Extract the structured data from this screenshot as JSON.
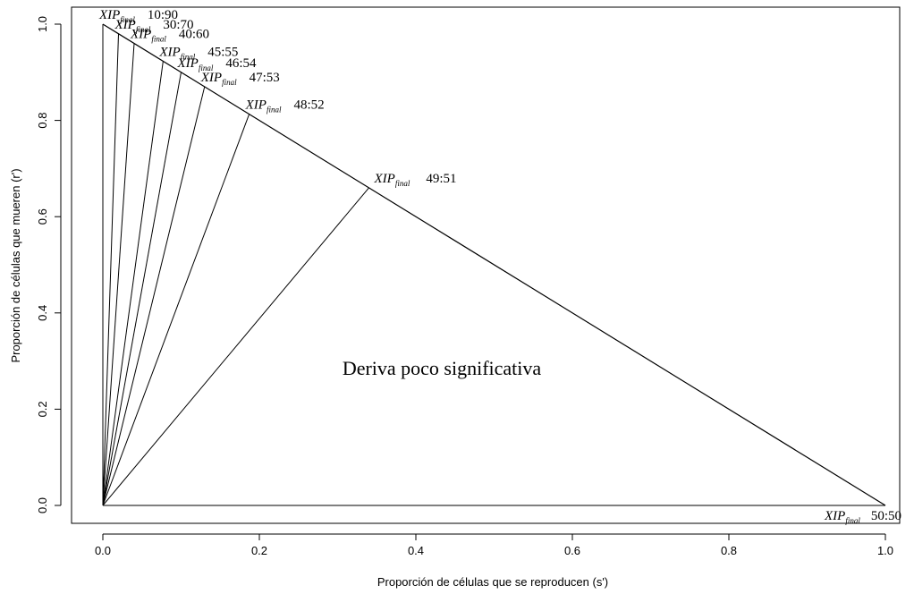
{
  "chart_data": {
    "type": "line",
    "xlabel": "Proporción de células que se reproducen (s')",
    "ylabel": "Proporción de células que mueren (r')",
    "xlim": [
      0,
      1
    ],
    "ylim": [
      0,
      1
    ],
    "xticks": [
      "0.0",
      "0.2",
      "0.4",
      "0.6",
      "0.8",
      "1.0"
    ],
    "yticks": [
      "0.0",
      "0.2",
      "0.4",
      "0.6",
      "0.8",
      "1.0"
    ],
    "grid": false,
    "boundary": [
      {
        "x": 0,
        "y": 1
      },
      {
        "x": 1,
        "y": 0
      }
    ],
    "rays_from_origin": [
      {
        "x": 0.0,
        "y": 1.0,
        "label_main": "XIP",
        "label_sub": "final",
        "ratio": "10:90",
        "font": "small"
      },
      {
        "x": 0.02,
        "y": 0.98,
        "label_main": "XIP",
        "label_sub": "final",
        "ratio": "30:70",
        "font": "small"
      },
      {
        "x": 0.04,
        "y": 0.96,
        "label_main": "XIP",
        "label_sub": "final",
        "ratio": "40:60",
        "font": "small"
      },
      {
        "x": 0.077,
        "y": 0.923,
        "label_main": "XIP",
        "label_sub": "final",
        "ratio": "45:55",
        "font": "small"
      },
      {
        "x": 0.1,
        "y": 0.9,
        "label_main": "XIP",
        "label_sub": "final",
        "ratio": "46:54",
        "font": "small"
      },
      {
        "x": 0.13,
        "y": 0.87,
        "label_main": "XIP",
        "label_sub": "final",
        "ratio": "47:53",
        "font": "small"
      },
      {
        "x": 0.187,
        "y": 0.813,
        "label_main": "XIP",
        "label_sub": "final",
        "ratio": "48:52",
        "font": "small"
      },
      {
        "x": 0.34,
        "y": 0.66,
        "label_main": "XIP",
        "label_sub": "final",
        "ratio": "49:51",
        "font": "large"
      },
      {
        "x": 1.0,
        "y": 0.0,
        "label_main": "XIP",
        "label_sub": "final",
        "ratio": "50:50",
        "font": "small"
      }
    ],
    "annotation": "Deriva poco significativa"
  }
}
